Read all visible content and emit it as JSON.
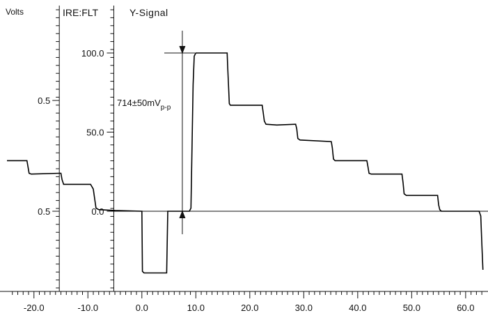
{
  "chart_data": {
    "type": "line",
    "title": "Y-Signal",
    "labels": {
      "volts": "Volts",
      "ire_flt": "IRE:FLT",
      "measurement_main": "714±50mV",
      "measurement_sub": "p-p"
    },
    "volts_tick_labels": [
      "0.5",
      "0.5"
    ],
    "ire_tick_labels": [
      "100.0",
      "50.0",
      "0.0"
    ],
    "x_tick_labels": [
      "-20.0",
      "-10.0",
      "0.0",
      "10.0",
      "20.0",
      "30.0",
      "40.0",
      "50.0",
      "60.0"
    ],
    "x_ticks": [
      -20,
      -10,
      0,
      10,
      20,
      30,
      40,
      50,
      60
    ],
    "xlim": [
      -25,
      63.5
    ],
    "ylim": [
      -45,
      110
    ],
    "ire_ticks": [
      100,
      50,
      0
    ],
    "volts_tick_ire": [
      70,
      0
    ],
    "measure_x": 7.5,
    "series": [
      {
        "points": [
          [
            -25,
            32
          ],
          [
            -21.3,
            32
          ],
          [
            -20.9,
            24
          ],
          [
            -20.5,
            23.5
          ],
          [
            -15.2,
            24
          ],
          [
            -15,
            24
          ],
          [
            -14.8,
            20
          ],
          [
            -14.5,
            17
          ],
          [
            -14.3,
            17
          ],
          [
            -9.5,
            17
          ],
          [
            -9,
            14
          ],
          [
            -8.5,
            2
          ],
          [
            -8,
            1
          ],
          [
            -5,
            0.5
          ],
          [
            0,
            0
          ],
          [
            0.1,
            -38
          ],
          [
            0.4,
            -39
          ],
          [
            4.6,
            -39
          ],
          [
            4.8,
            0
          ],
          [
            8.8,
            0
          ],
          [
            9.1,
            2
          ],
          [
            9.5,
            80
          ],
          [
            9.7,
            98
          ],
          [
            10,
            100
          ],
          [
            15.8,
            100
          ],
          [
            15.9,
            92
          ],
          [
            16.2,
            68
          ],
          [
            16.4,
            67
          ],
          [
            22.3,
            67
          ],
          [
            22.5,
            62
          ],
          [
            22.7,
            57
          ],
          [
            23,
            55
          ],
          [
            25,
            54.5
          ],
          [
            28.5,
            55
          ],
          [
            28.7,
            52
          ],
          [
            28.9,
            46
          ],
          [
            29.3,
            45
          ],
          [
            35.1,
            44
          ],
          [
            35.3,
            40
          ],
          [
            35.5,
            33
          ],
          [
            35.8,
            32
          ],
          [
            41.7,
            32
          ],
          [
            41.9,
            28
          ],
          [
            42.1,
            24
          ],
          [
            42.5,
            23.5
          ],
          [
            48.2,
            23.5
          ],
          [
            48.4,
            18
          ],
          [
            48.6,
            11
          ],
          [
            49,
            10
          ],
          [
            54.8,
            10
          ],
          [
            55,
            4
          ],
          [
            55.2,
            1
          ],
          [
            55.5,
            0
          ],
          [
            62.5,
            0
          ],
          [
            62.8,
            -3
          ],
          [
            63,
            -20
          ],
          [
            63.2,
            -37
          ]
        ]
      }
    ]
  }
}
